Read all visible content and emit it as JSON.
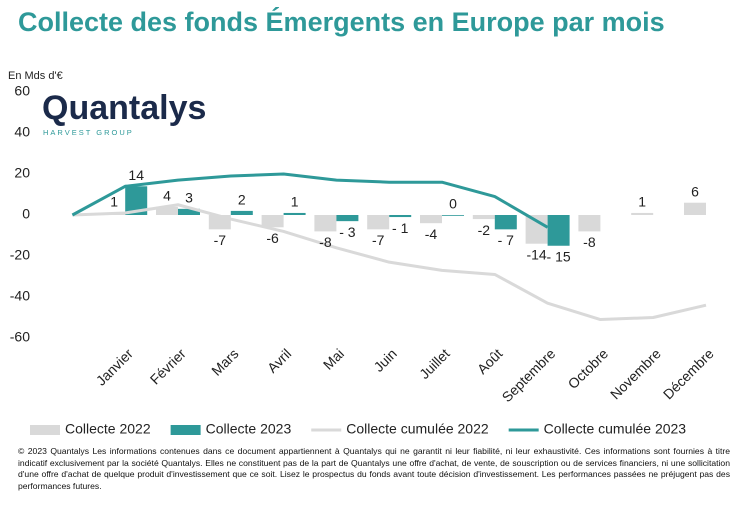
{
  "chart_data": {
    "type": "bar",
    "title": "Collecte des fonds Émergents en Europe par mois",
    "y_label": "En Mds d'€",
    "brand": "Quantalys",
    "brand_sub": "HARVEST GROUP",
    "categories": [
      null,
      "Janvier",
      "Février",
      "Mars",
      "Avril",
      "Mai",
      "Juin",
      "Juillet",
      "Août",
      "Septembre",
      "Octobre",
      "Novembre",
      "Décembre"
    ],
    "ylim": [
      -60,
      60
    ],
    "yticks": [
      -60,
      -40,
      -20,
      0,
      20,
      40,
      60
    ],
    "grid": false,
    "legend": "bottom",
    "series": [
      {
        "name": "Collecte 2022",
        "type": "bar",
        "color": "#d9d9d9",
        "values": [
          null,
          1,
          4,
          -7,
          -6,
          -8,
          -7,
          -4,
          -2,
          -14,
          -8,
          1,
          6
        ]
      },
      {
        "name": "Collecte 2023",
        "type": "bar",
        "color": "#2e9999",
        "values": [
          null,
          14,
          3,
          2,
          1,
          -3,
          -1,
          0,
          -7,
          -15,
          null,
          null,
          null
        ],
        "value_labels": [
          null,
          "14",
          "3",
          "2",
          "1",
          "- 3",
          "- 1",
          "0",
          "- 7",
          "- 15",
          null,
          null,
          null
        ]
      },
      {
        "name": "Collecte cumulée 2022",
        "type": "line",
        "color": "#d9d9d9",
        "values": [
          0,
          1,
          5,
          -2,
          -8,
          -16,
          -23,
          -27,
          -29,
          -43,
          -51,
          -50,
          -44
        ]
      },
      {
        "name": "Collecte cumulée 2023",
        "type": "line",
        "color": "#2e9999",
        "values": [
          0,
          14,
          17,
          19,
          20,
          17,
          16,
          16,
          9,
          -6,
          null,
          null,
          null
        ]
      }
    ],
    "footer": "© 2023 Quantalys Les informations contenues dans ce document appartiennent à Quantalys qui ne garantit ni leur fiabilité, ni leur exhaustivité. Ces informations sont fournies à titre indicatif exclusivement par la société Quantalys. Elles ne constituent pas de la part de Quantalys une offre d'achat, de vente, de souscription ou de services financiers, ni une sollicitation d'une offre d'achat de quelque produit d'investissement que ce soit. Lisez le prospectus du fonds avant toute décision d'investissement. Les performances passées ne préjugent pas des performances futures."
  }
}
